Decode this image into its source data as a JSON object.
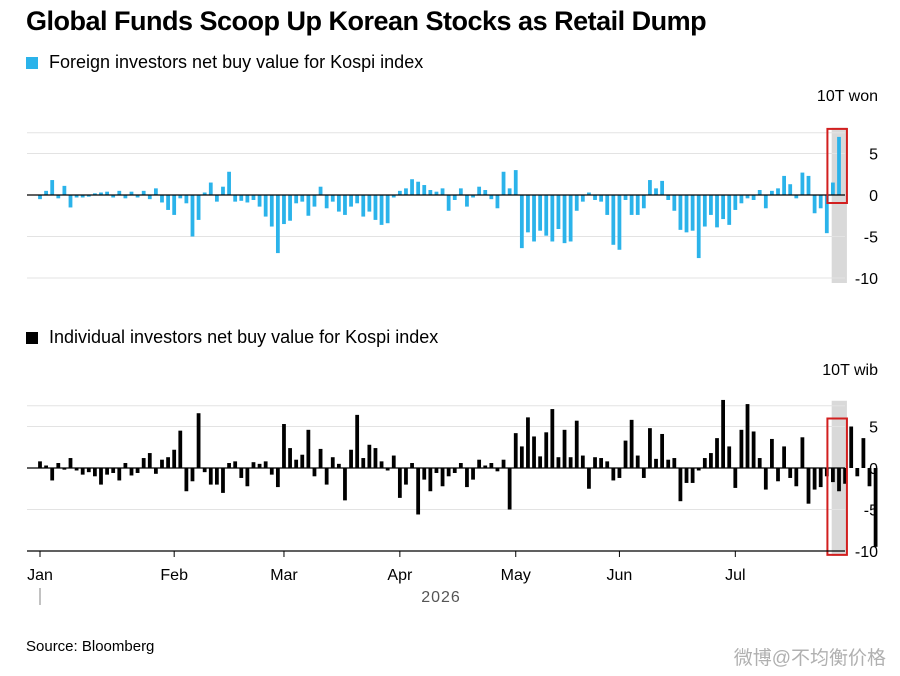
{
  "title": "Global Funds Scoop Up Korean Stocks as Retail Dump",
  "source": "Source: Bloomberg",
  "watermark": "微博@不均衡价格",
  "year_label": "2026",
  "colors": {
    "foreign": "#2bb3ea",
    "individual": "#000000",
    "highlight_box": "#d21f1f",
    "highlight_band": "#d9d9d9",
    "gridline": "#e3e3e3",
    "zero_line": "#000000"
  },
  "chart_data": [
    {
      "type": "bar",
      "title": "Foreign investors net buy value for Kospi index",
      "unit": "10T won",
      "ylim": [
        -10,
        7.5
      ],
      "yticks": [
        5,
        0,
        -5,
        -10
      ],
      "xlabel": "2026",
      "xtick_labels": [
        "Jan",
        "Feb",
        "Mar",
        "Apr",
        "May",
        "Jun",
        "Jul"
      ],
      "xtick_index": [
        0,
        22,
        40,
        59,
        78,
        95,
        114
      ],
      "highlight_last": 2,
      "values": [
        -0.5,
        0.5,
        1.8,
        -0.4,
        1.1,
        -1.5,
        -0.3,
        -0.3,
        -0.2,
        0.2,
        0.3,
        0.4,
        -0.3,
        0.5,
        -0.4,
        0.4,
        -0.3,
        0.5,
        -0.5,
        0.8,
        -0.9,
        -1.8,
        -2.4,
        -0.4,
        -1.0,
        -5.0,
        -3.0,
        0.3,
        1.5,
        -0.8,
        1.0,
        2.8,
        -0.8,
        -0.7,
        -0.9,
        -0.6,
        -1.4,
        -2.6,
        -3.8,
        -7.0,
        -3.5,
        -3.1,
        -1.0,
        -0.8,
        -2.5,
        -1.4,
        1.0,
        -1.6,
        -0.8,
        -2.0,
        -2.4,
        -1.4,
        -1.0,
        -2.6,
        -2.0,
        -3.0,
        -3.6,
        -3.4,
        -0.3,
        0.5,
        0.8,
        1.9,
        1.6,
        1.2,
        0.6,
        0.4,
        0.8,
        -1.9,
        -0.6,
        0.8,
        -1.4,
        -0.3,
        1.0,
        0.6,
        -0.5,
        -1.6,
        2.8,
        0.8,
        3.0,
        -6.4,
        -4.5,
        -5.6,
        -4.3,
        -4.9,
        -5.6,
        -4.1,
        -5.8,
        -5.6,
        -1.9,
        -0.8,
        0.3,
        -0.6,
        -0.8,
        -2.4,
        -6.0,
        -6.6,
        -0.6,
        -2.4,
        -2.4,
        -1.6,
        1.8,
        0.8,
        1.7,
        -0.6,
        -1.9,
        -4.2,
        -4.5,
        -4.3,
        -7.6,
        -3.8,
        -2.4,
        -3.9,
        -2.9,
        -3.6,
        -1.8,
        -1.0,
        -0.4,
        -0.6,
        0.6,
        -1.6,
        0.5,
        0.8,
        2.3,
        1.3,
        -0.4,
        2.7,
        2.3,
        -2.2,
        -1.6,
        -4.6,
        1.5,
        7.0
      ]
    },
    {
      "type": "bar",
      "title": "Individual investors net buy value for Kospi index",
      "unit": "10T wib",
      "ylim": [
        -10,
        7.5
      ],
      "yticks": [
        5,
        0,
        -5,
        -10
      ],
      "xlabel": "2026",
      "xtick_labels": [
        "Jan",
        "Feb",
        "Mar",
        "Apr",
        "May",
        "Jun",
        "Jul"
      ],
      "xtick_index": [
        0,
        22,
        40,
        59,
        78,
        95,
        114
      ],
      "highlight_last": 2,
      "values": [
        0.8,
        0.3,
        -1.5,
        0.6,
        -0.2,
        1.2,
        -0.3,
        -0.8,
        -0.5,
        -1.0,
        -2.0,
        -0.8,
        -0.6,
        -1.5,
        0.6,
        -0.9,
        -0.6,
        1.2,
        1.8,
        -0.7,
        1.0,
        1.3,
        2.2,
        4.5,
        -2.8,
        -1.6,
        6.6,
        -0.5,
        -2.0,
        -2.0,
        -3.0,
        0.6,
        0.8,
        -1.2,
        -2.2,
        0.7,
        0.5,
        0.8,
        -0.8,
        -2.3,
        5.3,
        2.4,
        1.0,
        1.6,
        4.6,
        -1.0,
        2.3,
        -2.0,
        1.3,
        0.5,
        -3.9,
        2.2,
        6.4,
        1.2,
        2.8,
        2.4,
        0.8,
        -0.3,
        1.5,
        -3.6,
        -2.0,
        0.6,
        -5.6,
        -1.4,
        -2.8,
        -0.6,
        -2.2,
        -1.0,
        -0.6,
        0.6,
        -2.3,
        -1.4,
        1.0,
        0.3,
        0.6,
        -0.4,
        1.0,
        -5.0,
        4.2,
        2.6,
        6.1,
        3.8,
        1.4,
        4.3,
        7.1,
        1.3,
        4.6,
        1.3,
        5.7,
        1.5,
        -2.5,
        1.3,
        1.2,
        0.8,
        -1.5,
        -1.2,
        3.3,
        5.8,
        1.5,
        -1.2,
        4.8,
        1.1,
        4.1,
        1.0,
        1.2,
        -4.0,
        -1.8,
        -1.8,
        -0.3,
        1.2,
        1.8,
        3.6,
        8.2,
        2.6,
        -2.4,
        4.6,
        7.7,
        4.4,
        1.2,
        -2.6,
        3.5,
        -1.6,
        2.6,
        -1.2,
        -2.2,
        3.7,
        -4.3,
        -2.6,
        -2.3,
        -1.0,
        -1.7,
        -2.8,
        -1.9,
        5.0,
        -1.0,
        3.6,
        -2.2,
        -9.5
      ]
    }
  ]
}
